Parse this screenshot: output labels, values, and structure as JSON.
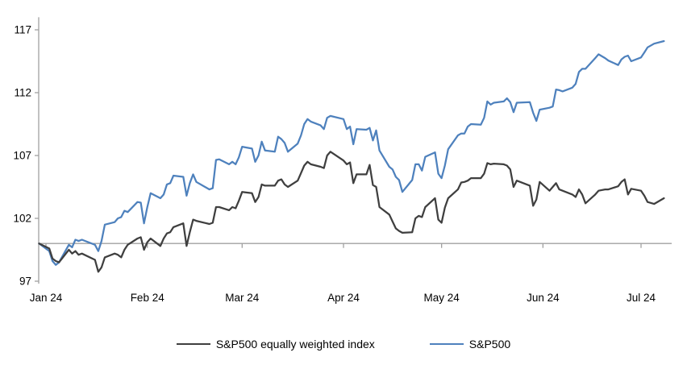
{
  "chart_data": {
    "type": "line",
    "title": "",
    "xlabel": "",
    "ylabel": "",
    "legend_position": "bottom",
    "grid": false,
    "baseline_value": 100,
    "y_axis": {
      "min": 97,
      "max": 118,
      "ticks": [
        97,
        102,
        107,
        112,
        117
      ]
    },
    "x_axis": {
      "tick_labels": [
        "Jan 24",
        "Feb 24",
        "Mar 24",
        "Apr 24",
        "May 24",
        "Jun 24",
        "Jul 24"
      ],
      "tick_dates": [
        "2024-01-01",
        "2024-02-01",
        "2024-03-01",
        "2024-04-01",
        "2024-05-01",
        "2024-06-01",
        "2024-07-01"
      ]
    },
    "dates": [
      "2023-12-29",
      "2024-01-02",
      "2024-01-03",
      "2024-01-04",
      "2024-01-05",
      "2024-01-08",
      "2024-01-09",
      "2024-01-10",
      "2024-01-11",
      "2024-01-12",
      "2024-01-16",
      "2024-01-17",
      "2024-01-18",
      "2024-01-19",
      "2024-01-22",
      "2024-01-23",
      "2024-01-24",
      "2024-01-25",
      "2024-01-26",
      "2024-01-29",
      "2024-01-30",
      "2024-01-31",
      "2024-02-01",
      "2024-02-02",
      "2024-02-05",
      "2024-02-06",
      "2024-02-07",
      "2024-02-08",
      "2024-02-09",
      "2024-02-12",
      "2024-02-13",
      "2024-02-14",
      "2024-02-15",
      "2024-02-16",
      "2024-02-20",
      "2024-02-21",
      "2024-02-22",
      "2024-02-23",
      "2024-02-26",
      "2024-02-27",
      "2024-02-28",
      "2024-02-29",
      "2024-03-01",
      "2024-03-04",
      "2024-03-05",
      "2024-03-06",
      "2024-03-07",
      "2024-03-08",
      "2024-03-11",
      "2024-03-12",
      "2024-03-13",
      "2024-03-14",
      "2024-03-15",
      "2024-03-18",
      "2024-03-19",
      "2024-03-20",
      "2024-03-21",
      "2024-03-22",
      "2024-03-25",
      "2024-03-26",
      "2024-03-27",
      "2024-03-28",
      "2024-04-01",
      "2024-04-02",
      "2024-04-03",
      "2024-04-04",
      "2024-04-05",
      "2024-04-08",
      "2024-04-09",
      "2024-04-10",
      "2024-04-11",
      "2024-04-12",
      "2024-04-15",
      "2024-04-16",
      "2024-04-17",
      "2024-04-18",
      "2024-04-19",
      "2024-04-22",
      "2024-04-23",
      "2024-04-24",
      "2024-04-25",
      "2024-04-26",
      "2024-04-29",
      "2024-04-30",
      "2024-05-01",
      "2024-05-02",
      "2024-05-03",
      "2024-05-06",
      "2024-05-07",
      "2024-05-08",
      "2024-05-09",
      "2024-05-10",
      "2024-05-13",
      "2024-05-14",
      "2024-05-15",
      "2024-05-16",
      "2024-05-17",
      "2024-05-20",
      "2024-05-21",
      "2024-05-22",
      "2024-05-23",
      "2024-05-24",
      "2024-05-28",
      "2024-05-29",
      "2024-05-30",
      "2024-05-31",
      "2024-06-03",
      "2024-06-04",
      "2024-06-05",
      "2024-06-06",
      "2024-06-07",
      "2024-06-10",
      "2024-06-11",
      "2024-06-12",
      "2024-06-13",
      "2024-06-14",
      "2024-06-17",
      "2024-06-18",
      "2024-06-20",
      "2024-06-21",
      "2024-06-24",
      "2024-06-25",
      "2024-06-26",
      "2024-06-27",
      "2024-06-28",
      "2024-07-01",
      "2024-07-02",
      "2024-07-03",
      "2024-07-05",
      "2024-07-08"
    ],
    "series": [
      {
        "name": "S&P500 equally weighted index",
        "color": "#3f3f3f",
        "values": [
          100.0,
          99.6,
          98.8,
          98.6,
          98.5,
          99.5,
          99.2,
          99.4,
          99.1,
          99.2,
          98.7,
          97.75,
          98.1,
          98.9,
          99.2,
          99.1,
          98.9,
          99.5,
          99.9,
          100.4,
          100.5,
          99.5,
          100.1,
          100.4,
          99.8,
          100.4,
          100.8,
          100.9,
          101.3,
          101.6,
          99.8,
          100.9,
          101.9,
          101.8,
          101.55,
          101.65,
          102.9,
          102.9,
          102.65,
          102.9,
          102.8,
          103.4,
          104.1,
          104.0,
          103.3,
          103.7,
          104.7,
          104.6,
          104.6,
          105.0,
          105.1,
          104.7,
          104.5,
          105.0,
          105.6,
          106.2,
          106.5,
          106.3,
          106.1,
          106.0,
          107.0,
          107.3,
          106.6,
          106.3,
          106.45,
          104.8,
          105.5,
          105.5,
          106.25,
          104.65,
          104.5,
          102.9,
          102.3,
          101.75,
          101.2,
          101.0,
          100.85,
          100.9,
          102.0,
          102.2,
          102.1,
          102.9,
          103.6,
          101.9,
          101.65,
          102.85,
          103.6,
          104.3,
          104.85,
          104.9,
          105.0,
          105.2,
          105.2,
          105.55,
          106.4,
          106.3,
          106.35,
          106.3,
          106.2,
          105.9,
          104.5,
          105.0,
          104.6,
          103.0,
          103.5,
          104.9,
          104.2,
          104.5,
          104.8,
          104.3,
          104.2,
          103.9,
          103.7,
          104.3,
          103.9,
          103.2,
          103.9,
          104.2,
          104.3,
          104.3,
          104.55,
          104.9,
          105.1,
          103.9,
          104.35,
          104.2,
          103.8,
          103.3,
          103.15,
          103.6
        ]
      },
      {
        "name": "S&P500",
        "color": "#4e81bd",
        "values": [
          100.0,
          99.4,
          98.6,
          98.3,
          98.5,
          99.9,
          99.7,
          100.3,
          100.2,
          100.3,
          99.9,
          99.4,
          100.2,
          101.5,
          101.7,
          102.0,
          102.1,
          102.6,
          102.5,
          103.3,
          103.25,
          101.6,
          102.9,
          104.0,
          103.6,
          103.9,
          104.7,
          104.8,
          105.4,
          105.3,
          103.8,
          104.8,
          105.5,
          104.9,
          104.3,
          104.4,
          106.65,
          106.7,
          106.3,
          106.5,
          106.3,
          106.85,
          107.7,
          107.55,
          106.5,
          107.0,
          108.1,
          107.4,
          107.3,
          108.5,
          108.3,
          108.0,
          107.3,
          107.95,
          108.6,
          109.5,
          109.9,
          109.7,
          109.4,
          109.1,
          110.0,
          110.15,
          109.9,
          109.1,
          109.3,
          107.9,
          109.1,
          109.05,
          109.2,
          108.2,
          109.0,
          107.4,
          106.1,
          105.9,
          105.3,
          105.05,
          104.1,
          105.05,
          106.3,
          106.3,
          105.8,
          106.9,
          107.25,
          105.55,
          105.2,
          106.2,
          107.5,
          108.6,
          108.75,
          108.75,
          109.3,
          109.5,
          109.45,
          110.0,
          111.3,
          111.05,
          111.2,
          111.3,
          111.55,
          111.25,
          110.45,
          111.2,
          111.25,
          110.4,
          109.75,
          110.65,
          110.8,
          110.9,
          112.25,
          112.2,
          112.1,
          112.4,
          112.7,
          113.65,
          113.9,
          113.9,
          114.75,
          115.05,
          114.75,
          114.55,
          114.2,
          114.65,
          114.85,
          114.95,
          114.5,
          114.8,
          115.2,
          115.6,
          115.9,
          116.1
        ]
      }
    ]
  },
  "colors": {
    "axis": "#a0a0a0",
    "text": "#000000",
    "background": "#ffffff",
    "equal_weight_line": "#3f3f3f",
    "sp500_line": "#4e81bd"
  }
}
